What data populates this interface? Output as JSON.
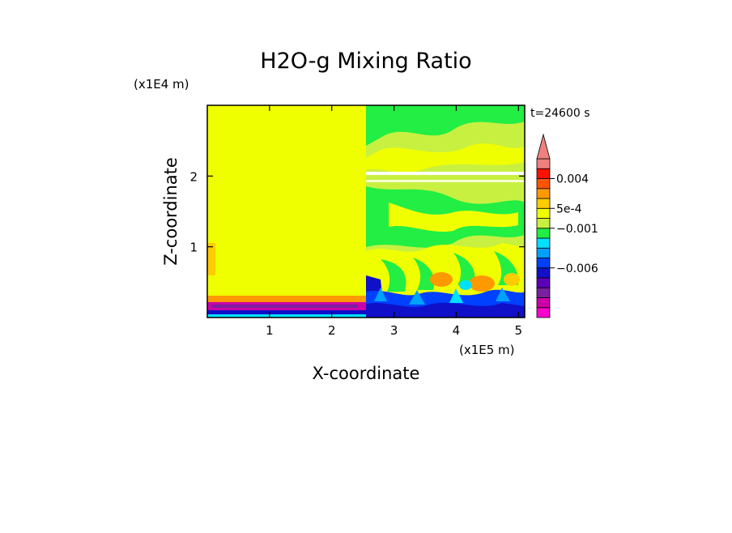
{
  "chart_data": {
    "type": "heatmap",
    "title": "H2O-g Mixing Ratio",
    "time_label": "t=24600 s",
    "xlabel": "X-coordinate",
    "ylabel": "Z-coordinate",
    "x_unit": "(x1E5 m)",
    "y_unit": "(x1E4 m)",
    "xlim": [
      0,
      5.1
    ],
    "ylim": [
      0,
      3.0
    ],
    "x_ticks": [
      1,
      2,
      3,
      4,
      5
    ],
    "y_ticks": [
      1,
      2
    ],
    "colorbar": {
      "colors": [
        "#ff00cc",
        "#cc00aa",
        "#7a1fa0",
        "#5c00b8",
        "#1010c8",
        "#0040ff",
        "#00a0ff",
        "#00e0ff",
        "#22ee44",
        "#c8f040",
        "#f0ff00",
        "#ffcc00",
        "#ff9900",
        "#ff5500",
        "#ff1100",
        "#f07f7f"
      ],
      "labels": [
        {
          "text": "0.004",
          "level": 0.004
        },
        {
          "text": "5e-4",
          "level": 0.0005
        },
        {
          "text": "−0.001",
          "level": -0.001
        },
        {
          "text": "−0.006",
          "level": -0.006
        }
      ],
      "extend_max": true
    }
  }
}
